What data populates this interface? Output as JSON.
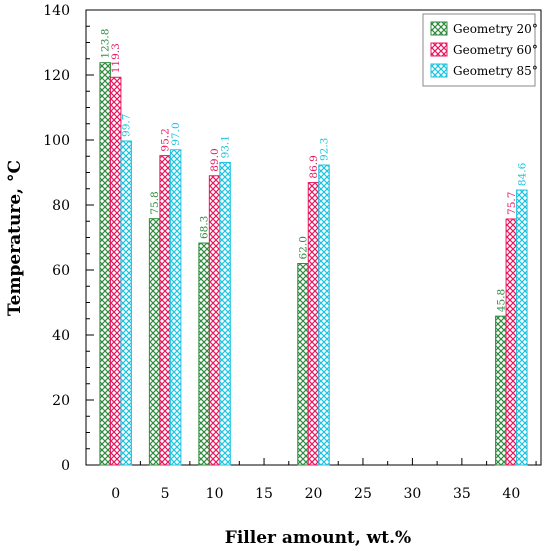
{
  "chart_data": {
    "type": "bar",
    "title": "",
    "xlabel": "Filler amount, wt.%",
    "ylabel": "Temperature, °C",
    "x_ticks": [
      "0",
      "5",
      "10",
      "15",
      "20",
      "25",
      "30",
      "35",
      "40"
    ],
    "y_ticks": [
      "0",
      "20",
      "40",
      "60",
      "80",
      "100",
      "120",
      "140"
    ],
    "ylim": [
      0,
      140
    ],
    "xlim": [
      -3,
      43
    ],
    "categories": [
      "0",
      "5",
      "10",
      "20",
      "40"
    ],
    "category_x": [
      0,
      5,
      10,
      20,
      40
    ],
    "series": [
      {
        "name": "Geometry 20°",
        "color": "#2e8b3e",
        "values": [
          123.8,
          75.8,
          68.3,
          62.0,
          45.8
        ],
        "labels": [
          "123.8",
          "75.8",
          "68.3",
          "62.0",
          "45.8"
        ]
      },
      {
        "name": "Geometry 60°",
        "color": "#e8185e",
        "values": [
          119.3,
          95.2,
          89.0,
          86.9,
          75.7
        ],
        "labels": [
          "119.3",
          "95.2",
          "89.0",
          "86.9",
          "75.7"
        ]
      },
      {
        "name": "Geometry 85°",
        "color": "#1ec4e0",
        "values": [
          99.7,
          97.0,
          93.1,
          92.3,
          84.6
        ],
        "labels": [
          "99.7",
          "97.0",
          "93.1",
          "92.3",
          "84.6"
        ]
      }
    ],
    "legend_position": "top-right",
    "grid": false
  }
}
